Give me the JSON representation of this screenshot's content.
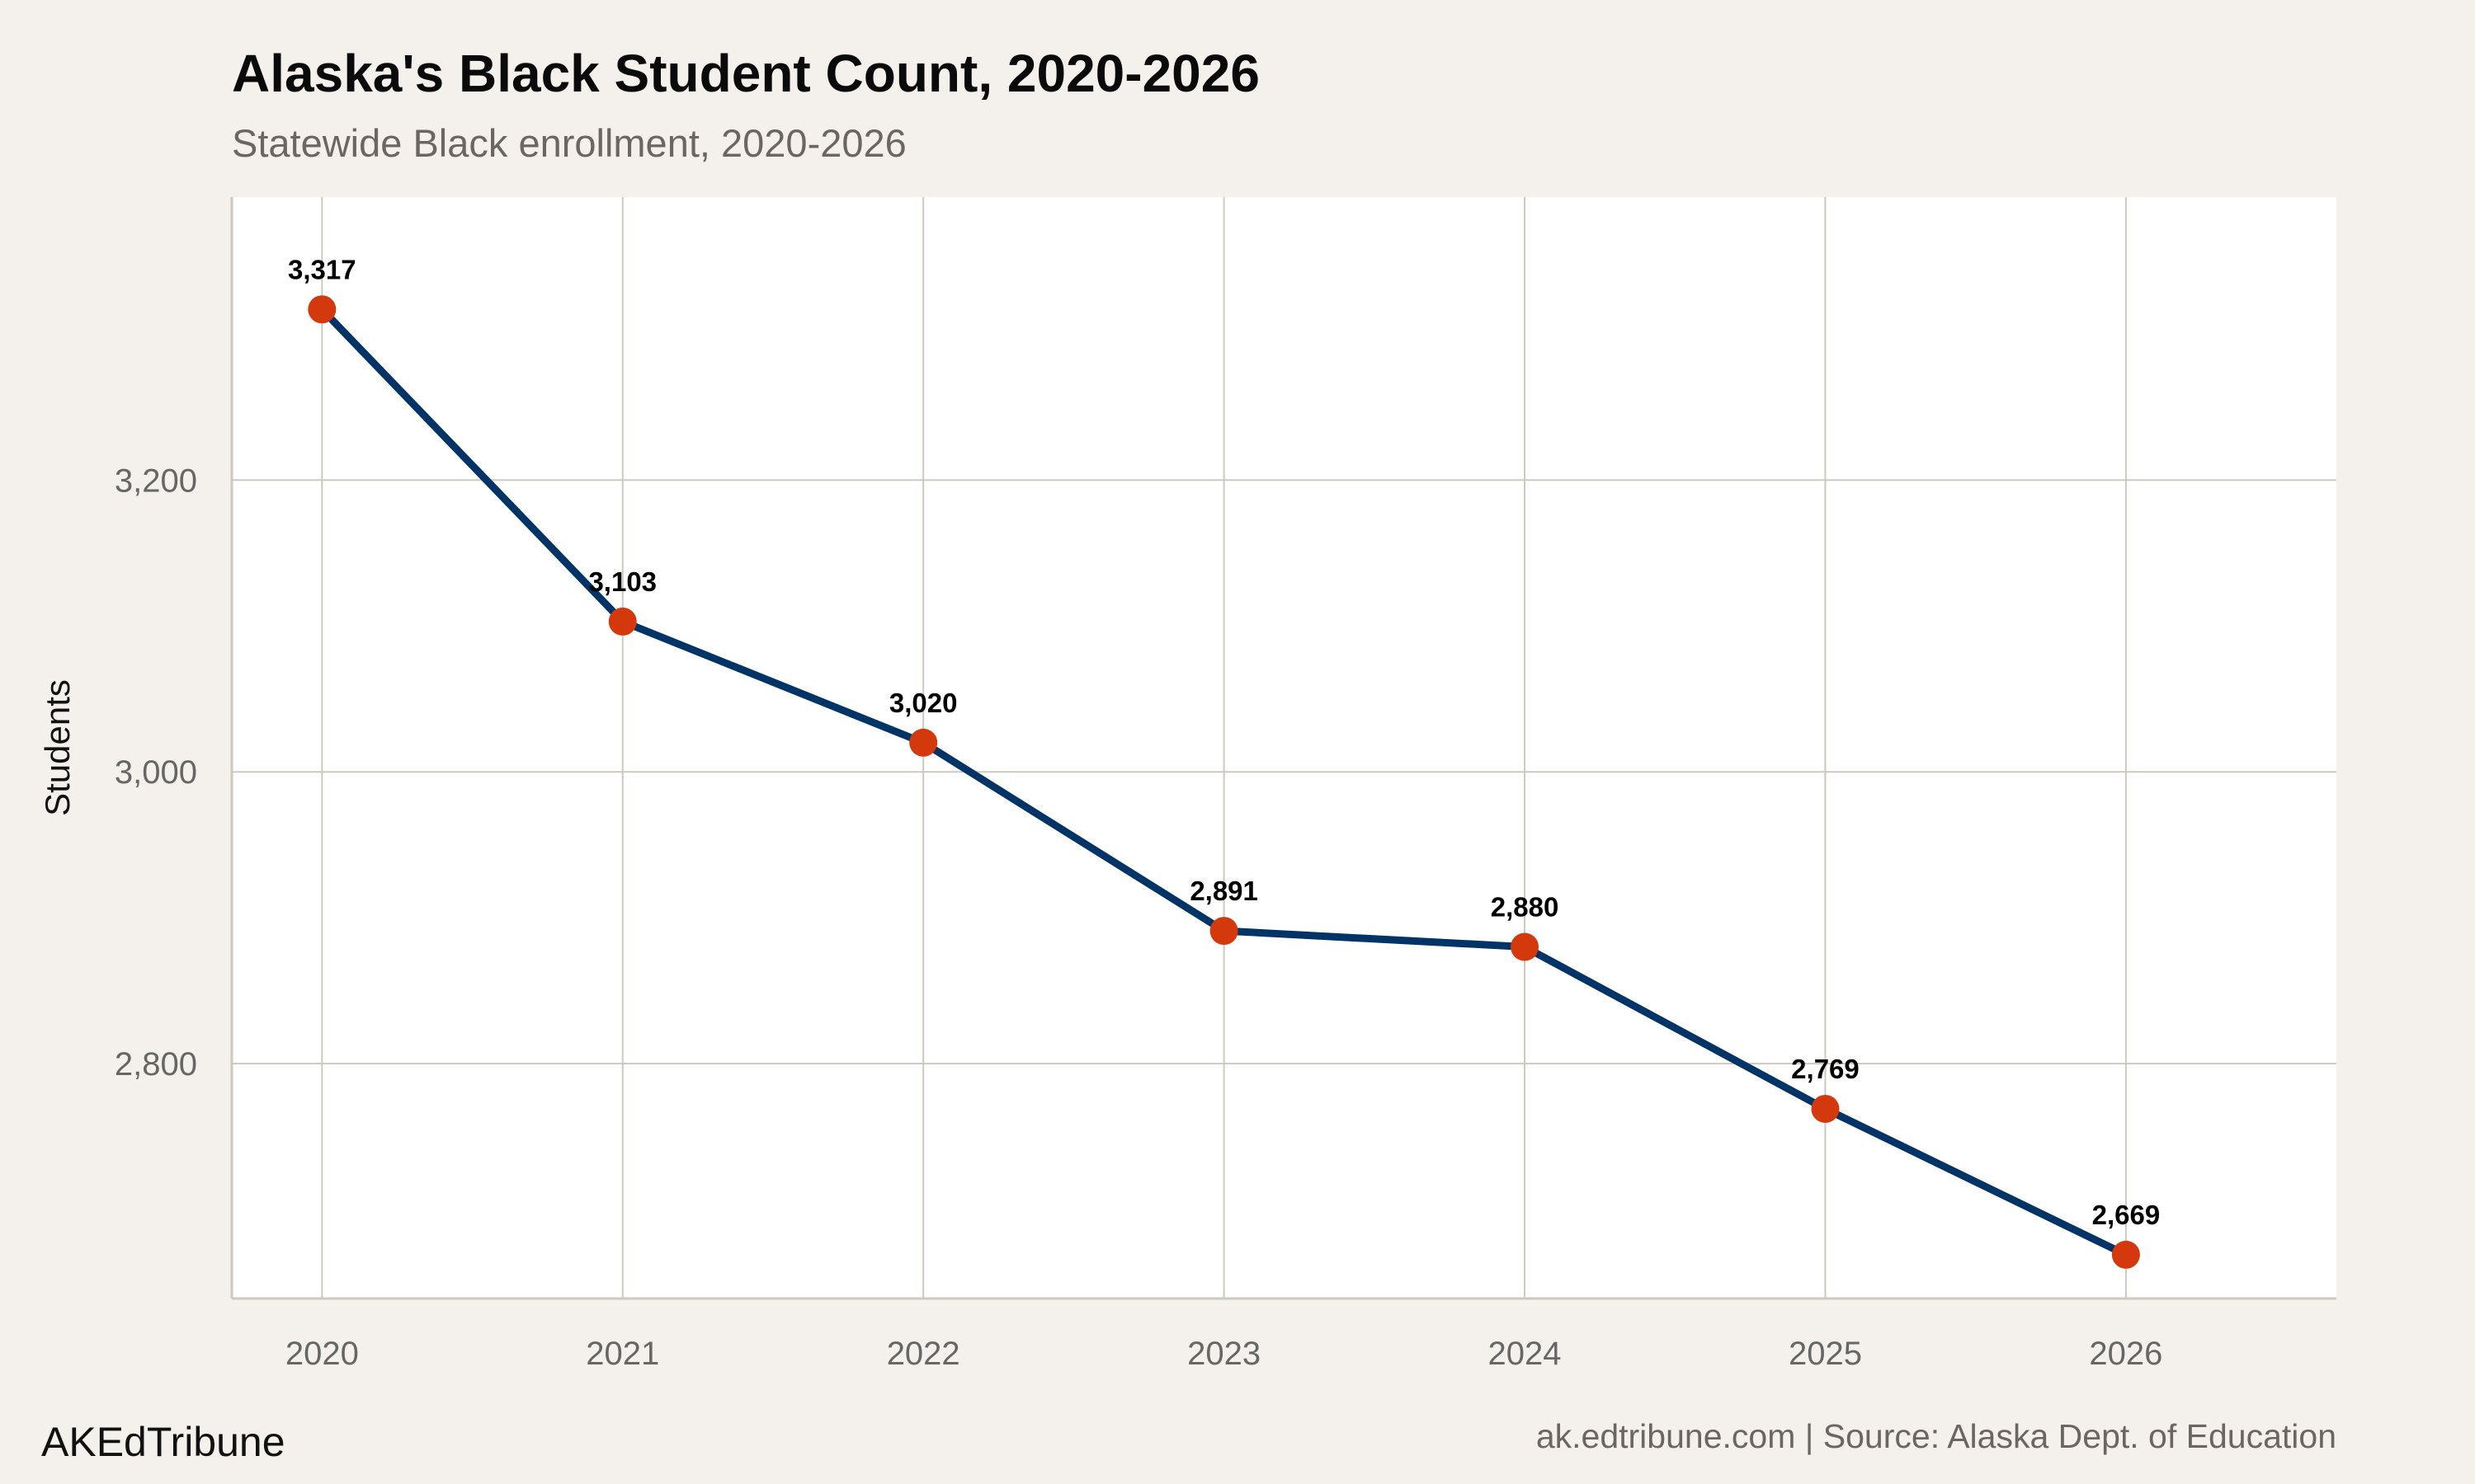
{
  "chart_data": {
    "type": "line",
    "title": "Alaska's Black Student Count, 2020-2026",
    "subtitle": "Statewide Black enrollment, 2020-2026",
    "xlabel": "",
    "ylabel": "Students",
    "x": [
      2020,
      2021,
      2022,
      2023,
      2024,
      2025,
      2026
    ],
    "values": [
      3317,
      3103,
      3020,
      2891,
      2880,
      2769,
      2669
    ],
    "data_labels": [
      "3,317",
      "3,103",
      "3,020",
      "2,891",
      "2,880",
      "2,769",
      "2,669"
    ],
    "x_ticks": [
      "2020",
      "2021",
      "2022",
      "2023",
      "2024",
      "2025",
      "2026"
    ],
    "y_ticks": [
      2800,
      3000,
      3200
    ],
    "y_tick_labels": [
      "2,800",
      "3,000",
      "3,200"
    ],
    "xlim": [
      2019.7,
      2026.7
    ],
    "ylim": [
      2639,
      3394
    ],
    "grid": true,
    "legend": "none",
    "colors": {
      "line": "#003366",
      "point": "#d4380d",
      "background": "#f4f1ec",
      "panel": "#ffffff",
      "grid": "#cdc8c1"
    }
  },
  "footer": {
    "brand": "AKEdTribune",
    "source": "ak.edtribune.com | Source: Alaska Dept. of Education"
  }
}
